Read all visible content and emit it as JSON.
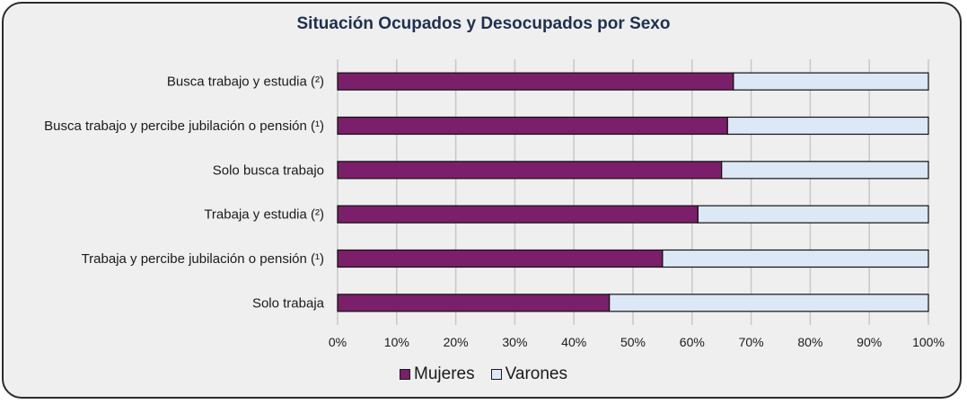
{
  "chart_data": {
    "type": "bar",
    "orientation": "horizontal",
    "stacked": true,
    "title": "Situación Ocupados y Desocupados por Sexo",
    "categories": [
      "Busca trabajo y estudia (²)",
      "Busca trabajo y percibe jubilación o pensión (¹)",
      "Solo busca trabajo",
      "Trabaja y estudia (²)",
      "Trabaja y percibe jubilación o pensión (¹)",
      "Solo trabaja"
    ],
    "series": [
      {
        "name": "Mujeres",
        "color": "#7b1f6a",
        "values": [
          67,
          66,
          65,
          61,
          55,
          46
        ]
      },
      {
        "name": "Varones",
        "color": "#dde8f6",
        "values": [
          33,
          34,
          35,
          39,
          45,
          54
        ]
      }
    ],
    "xlim": [
      0,
      100
    ],
    "xticks": [
      "0%",
      "10%",
      "20%",
      "30%",
      "40%",
      "50%",
      "60%",
      "70%",
      "80%",
      "90%",
      "100%"
    ],
    "grid": true,
    "legend_position": "bottom"
  }
}
